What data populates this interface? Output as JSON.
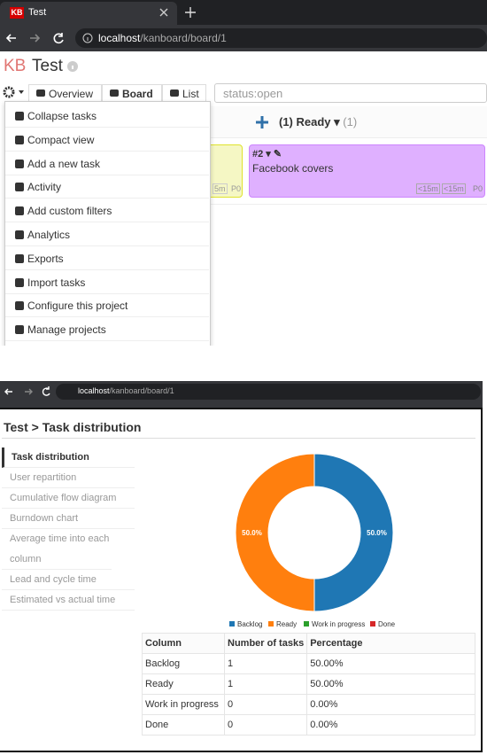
{
  "browser_top": {
    "favicon": "KB",
    "tab_title": "Test",
    "url_host": "localhost",
    "url_path": "/kanboard/board/1"
  },
  "header": {
    "logo": "KB",
    "project": "Test"
  },
  "toolbar": {
    "views": [
      "Overview",
      "Board",
      "List"
    ],
    "search": "status:open"
  },
  "board": {
    "column": {
      "title": "(1) Ready",
      "count": "(1)"
    },
    "left_card": {
      "time": "5m",
      "priority": "P0"
    },
    "card": {
      "id": "#2",
      "title": "Facebook covers",
      "estimate": "<15m",
      "spent": "<15m",
      "priority": "P0"
    }
  },
  "menu": [
    "Collapse tasks",
    "Compact view",
    "Add a new task",
    "Activity",
    "Add custom filters",
    "Analytics",
    "Exports",
    "Import tasks",
    "Configure this project",
    "Manage projects"
  ],
  "browser_bottom": {
    "url_host": "localhost",
    "url_path": "/kanboard/board/1"
  },
  "analytics": {
    "title": "Test > Task distribution",
    "sidebar": [
      "Task distribution",
      "User repartition",
      "Cumulative flow diagram",
      "Burndown chart",
      "Average time into each column",
      "Lead and cycle time",
      "Estimated vs actual time"
    ]
  },
  "chart_data": {
    "type": "pie",
    "donut": true,
    "categories": [
      "Backlog",
      "Ready",
      "Work in progress",
      "Done"
    ],
    "values": [
      50,
      50,
      0,
      0
    ],
    "value_labels": [
      "50.0%",
      "50.0%",
      null,
      null
    ],
    "colors": [
      "#1f77b4",
      "#ff7f0e",
      "#2ca02c",
      "#d62728"
    ]
  },
  "table": {
    "header": [
      "Column",
      "Number of tasks",
      "Percentage"
    ],
    "rows": [
      [
        "Backlog",
        "1",
        "50.00%"
      ],
      [
        "Ready",
        "1",
        "50.00%"
      ],
      [
        "Work in progress",
        "0",
        "0.00%"
      ],
      [
        "Done",
        "0",
        "0.00%"
      ]
    ]
  }
}
